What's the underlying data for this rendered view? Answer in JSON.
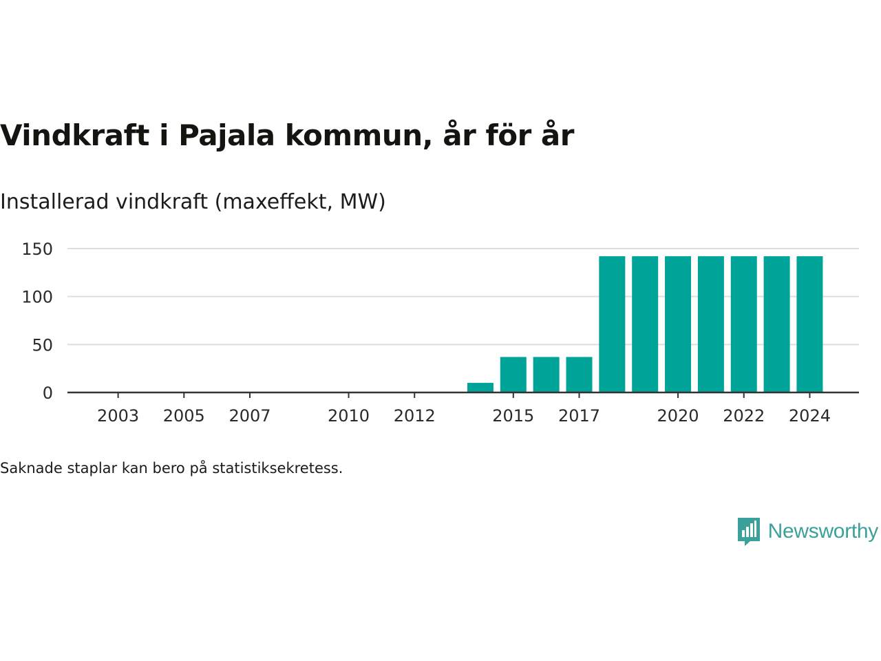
{
  "title": "Vindkraft i Pajala kommun, år för år",
  "subtitle": "Installerad vindkraft (maxeffekt, MW)",
  "note": "Saknade staplar kan bero på statistiksekretess.",
  "brand": {
    "name": "Newsworthy",
    "icon": "newsworthy-logo-icon",
    "color": "#3ba19a"
  },
  "chart_data": {
    "type": "bar",
    "categories": [
      "2003",
      "2004",
      "2005",
      "2006",
      "2007",
      "2008",
      "2009",
      "2010",
      "2011",
      "2012",
      "2013",
      "2014",
      "2015",
      "2016",
      "2017",
      "2018",
      "2019",
      "2020",
      "2021",
      "2022",
      "2023",
      "2024"
    ],
    "values": [
      null,
      null,
      null,
      null,
      null,
      null,
      null,
      null,
      null,
      null,
      null,
      10,
      37,
      37,
      37,
      142,
      142,
      142,
      142,
      142,
      142,
      142
    ],
    "x_tick_labels": [
      "2003",
      "2005",
      "2007",
      "2010",
      "2012",
      "2015",
      "2017",
      "2020",
      "2022",
      "2024"
    ],
    "y_ticks": [
      0,
      50,
      100,
      150
    ],
    "ylim": [
      0,
      150
    ],
    "bar_color": "#00a398",
    "gridlines": true,
    "legend": "none"
  }
}
